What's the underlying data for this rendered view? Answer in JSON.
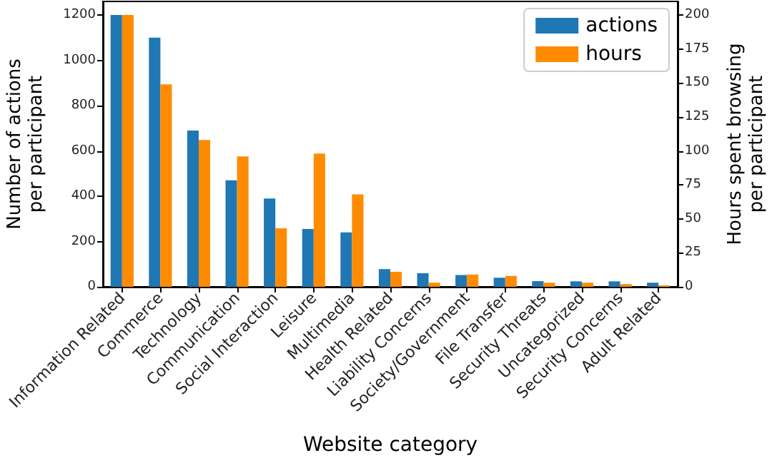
{
  "chart_data": {
    "type": "bar",
    "xlabel": "Website category",
    "ylabel": "Number of actions\nper participant",
    "y2label": "Hours spent browsing\nper participant",
    "categories": [
      "Information Related",
      "Commerce",
      "Technology",
      "Communication",
      "Social Interaction",
      "Leisure",
      "Multimedia",
      "Health Related",
      "Liability Concerns",
      "Society/Government",
      "File Transfer",
      "Security Threats",
      "Uncategorized",
      "Security Concerns",
      "Adult Related"
    ],
    "series": [
      {
        "name": "actions",
        "color": "#1f77b4",
        "values": [
          1200,
          1100,
          690,
          470,
          390,
          255,
          240,
          78,
          60,
          52,
          40,
          25,
          24,
          24,
          18
        ]
      },
      {
        "name": "hours",
        "color": "#ff8c00",
        "axis": "y2",
        "values": [
          200,
          149,
          108,
          96,
          43,
          98,
          68,
          11,
          3,
          9,
          8,
          3,
          3,
          2,
          1
        ]
      }
    ],
    "ylim": [
      0,
      1260
    ],
    "yticks": [
      0,
      200,
      400,
      600,
      800,
      1000,
      1200
    ],
    "y2lim": [
      0,
      210
    ],
    "y2ticks": [
      0,
      25,
      50,
      75,
      100,
      125,
      150,
      175,
      200
    ],
    "grid": false,
    "legend": "top right"
  }
}
